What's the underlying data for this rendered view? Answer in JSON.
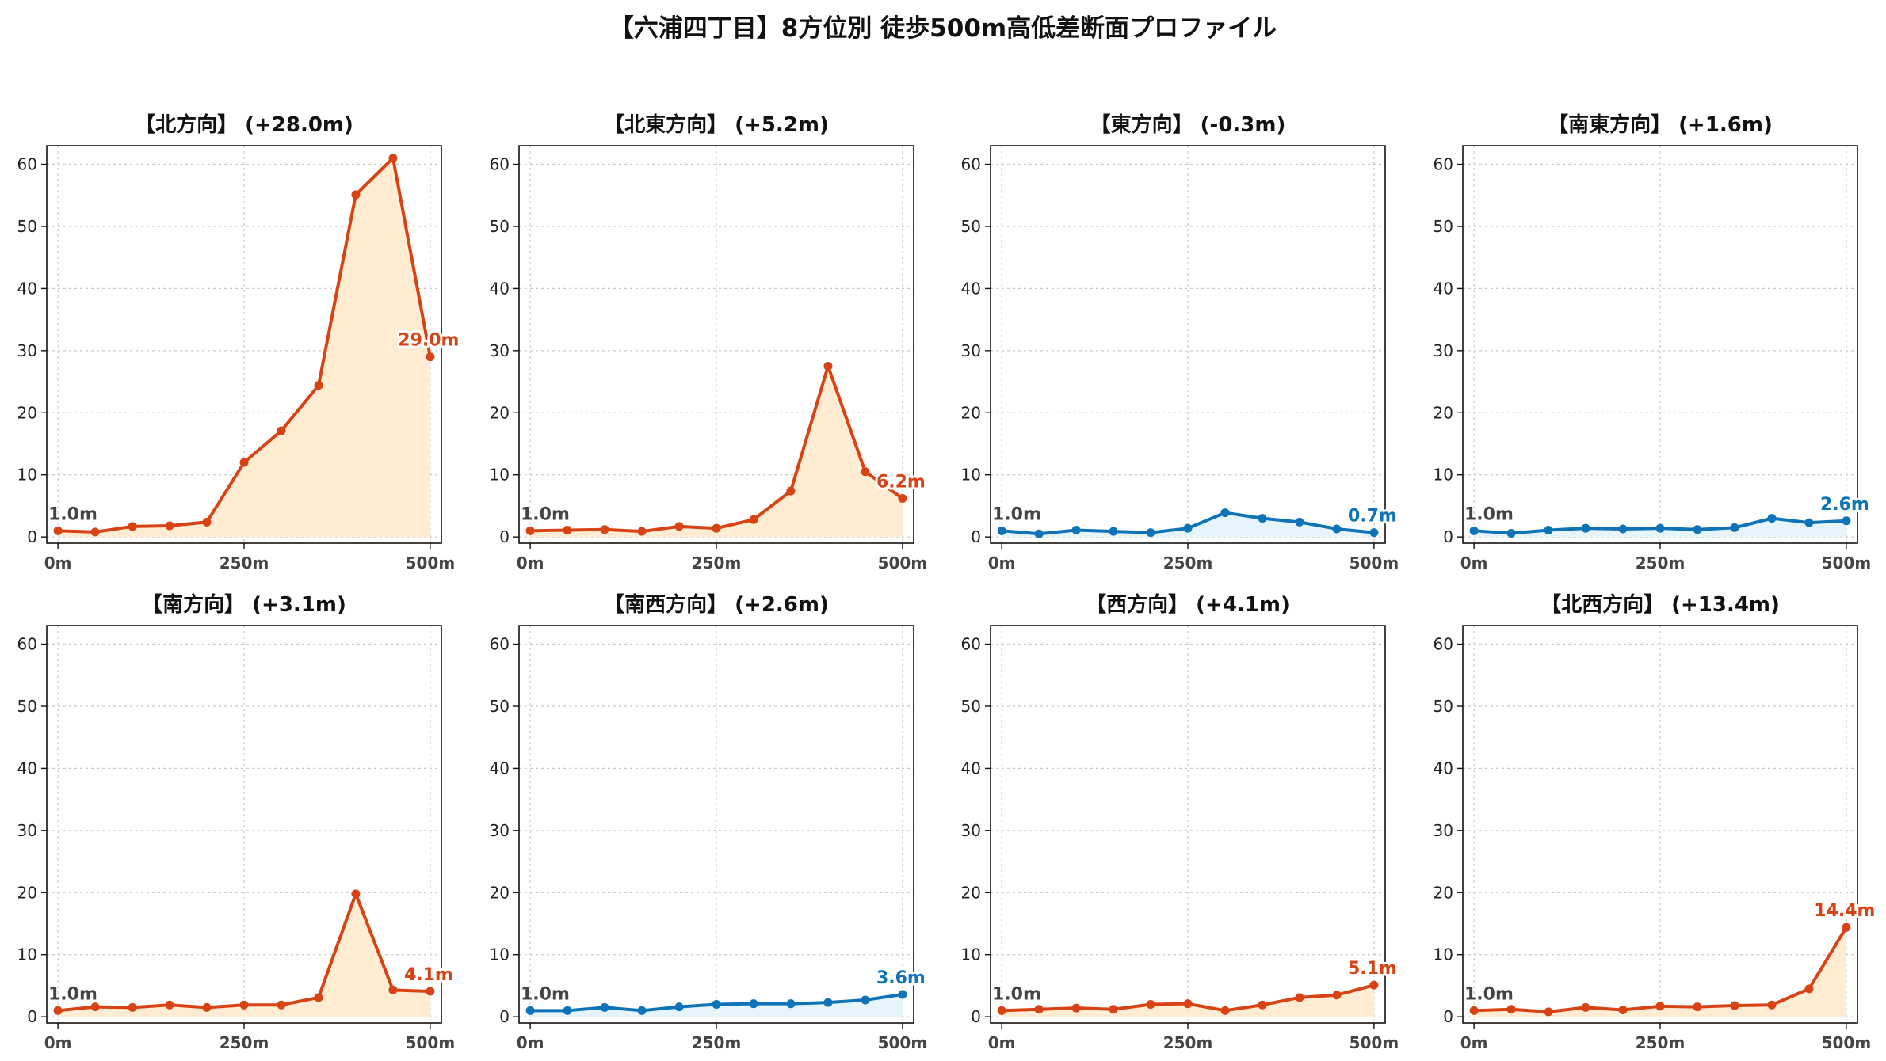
{
  "title": "【六浦四丁目】8方位別 徒歩500m高低差断面プロファイル",
  "colors": {
    "up_line": "#d84315",
    "up_fill": "#ffecd2",
    "down_line": "#0f73b8",
    "down_fill": "#e6f4fb",
    "start_label": "#444444"
  },
  "chart_data": [
    {
      "type": "area",
      "title": "【北方向】 (+28.0m)",
      "trend": "up",
      "x": [
        0,
        50,
        100,
        150,
        200,
        250,
        300,
        350,
        400,
        450,
        500
      ],
      "values": [
        1.0,
        0.8,
        1.7,
        1.8,
        2.4,
        12.0,
        17.1,
        24.4,
        55.1,
        61.0,
        29.0
      ],
      "x_ticks": [
        "0m",
        "250m",
        "500m"
      ],
      "x_tick_values": [
        0,
        250,
        500
      ],
      "y_ticks": [
        0,
        10,
        20,
        30,
        40,
        50,
        60
      ],
      "ylim": [
        -1,
        63
      ],
      "start_label": "1.0m",
      "end_label": "29.0m",
      "grid": true
    },
    {
      "type": "area",
      "title": "【北東方向】 (+5.2m)",
      "trend": "up",
      "x": [
        0,
        50,
        100,
        150,
        200,
        250,
        300,
        350,
        400,
        450,
        500
      ],
      "values": [
        1.0,
        1.1,
        1.2,
        0.9,
        1.7,
        1.4,
        2.8,
        7.4,
        27.5,
        10.5,
        6.2
      ],
      "x_ticks": [
        "0m",
        "250m",
        "500m"
      ],
      "x_tick_values": [
        0,
        250,
        500
      ],
      "y_ticks": [
        0,
        10,
        20,
        30,
        40,
        50,
        60
      ],
      "ylim": [
        -1,
        63
      ],
      "start_label": "1.0m",
      "end_label": "6.2m",
      "grid": true
    },
    {
      "type": "area",
      "title": "【東方向】 (-0.3m)",
      "trend": "down",
      "x": [
        0,
        50,
        100,
        150,
        200,
        250,
        300,
        350,
        400,
        450,
        500
      ],
      "values": [
        1.0,
        0.5,
        1.1,
        0.9,
        0.7,
        1.4,
        3.9,
        3.0,
        2.4,
        1.3,
        0.7
      ],
      "x_ticks": [
        "0m",
        "250m",
        "500m"
      ],
      "x_tick_values": [
        0,
        250,
        500
      ],
      "y_ticks": [
        0,
        10,
        20,
        30,
        40,
        50,
        60
      ],
      "ylim": [
        -1,
        63
      ],
      "start_label": "1.0m",
      "end_label": "0.7m",
      "grid": true
    },
    {
      "type": "area",
      "title": "【南東方向】 (+1.6m)",
      "trend": "up_small",
      "x": [
        0,
        50,
        100,
        150,
        200,
        250,
        300,
        350,
        400,
        450,
        500
      ],
      "values": [
        1.0,
        0.6,
        1.1,
        1.4,
        1.3,
        1.4,
        1.2,
        1.5,
        3.0,
        2.3,
        2.6
      ],
      "x_ticks": [
        "0m",
        "250m",
        "500m"
      ],
      "x_tick_values": [
        0,
        250,
        500
      ],
      "y_ticks": [
        0,
        10,
        20,
        30,
        40,
        50,
        60
      ],
      "ylim": [
        -1,
        63
      ],
      "start_label": "1.0m",
      "end_label": "2.6m",
      "grid": true
    },
    {
      "type": "area",
      "title": "【南方向】 (+3.1m)",
      "trend": "up",
      "x": [
        0,
        50,
        100,
        150,
        200,
        250,
        300,
        350,
        400,
        450,
        500
      ],
      "values": [
        1.0,
        1.6,
        1.5,
        1.9,
        1.5,
        1.9,
        1.9,
        3.1,
        19.8,
        4.3,
        4.1
      ],
      "x_ticks": [
        "0m",
        "250m",
        "500m"
      ],
      "x_tick_values": [
        0,
        250,
        500
      ],
      "y_ticks": [
        0,
        10,
        20,
        30,
        40,
        50,
        60
      ],
      "ylim": [
        -1,
        63
      ],
      "start_label": "1.0m",
      "end_label": "4.1m",
      "grid": true
    },
    {
      "type": "area",
      "title": "【南西方向】 (+2.6m)",
      "trend": "up_small",
      "x": [
        0,
        50,
        100,
        150,
        200,
        250,
        300,
        350,
        400,
        450,
        500
      ],
      "values": [
        1.0,
        1.0,
        1.5,
        1.0,
        1.6,
        2.0,
        2.1,
        2.1,
        2.3,
        2.7,
        3.6
      ],
      "x_ticks": [
        "0m",
        "250m",
        "500m"
      ],
      "x_tick_values": [
        0,
        250,
        500
      ],
      "y_ticks": [
        0,
        10,
        20,
        30,
        40,
        50,
        60
      ],
      "ylim": [
        -1,
        63
      ],
      "start_label": "1.0m",
      "end_label": "3.6m",
      "grid": true
    },
    {
      "type": "area",
      "title": "【西方向】 (+4.1m)",
      "trend": "up",
      "x": [
        0,
        50,
        100,
        150,
        200,
        250,
        300,
        350,
        400,
        450,
        500
      ],
      "values": [
        1.0,
        1.2,
        1.4,
        1.2,
        2.0,
        2.1,
        1.0,
        1.9,
        3.1,
        3.5,
        5.1
      ],
      "x_ticks": [
        "0m",
        "250m",
        "500m"
      ],
      "x_tick_values": [
        0,
        250,
        500
      ],
      "y_ticks": [
        0,
        10,
        20,
        30,
        40,
        50,
        60
      ],
      "ylim": [
        -1,
        63
      ],
      "start_label": "1.0m",
      "end_label": "5.1m",
      "grid": true
    },
    {
      "type": "area",
      "title": "【北西方向】 (+13.4m)",
      "trend": "up",
      "x": [
        0,
        50,
        100,
        150,
        200,
        250,
        300,
        350,
        400,
        450,
        500
      ],
      "values": [
        1.0,
        1.2,
        0.8,
        1.5,
        1.1,
        1.7,
        1.6,
        1.8,
        1.9,
        4.5,
        14.4
      ],
      "x_ticks": [
        "0m",
        "250m",
        "500m"
      ],
      "x_tick_values": [
        0,
        250,
        500
      ],
      "y_ticks": [
        0,
        10,
        20,
        30,
        40,
        50,
        60
      ],
      "ylim": [
        -1,
        63
      ],
      "start_label": "1.0m",
      "end_label": "14.4m",
      "grid": true
    }
  ]
}
